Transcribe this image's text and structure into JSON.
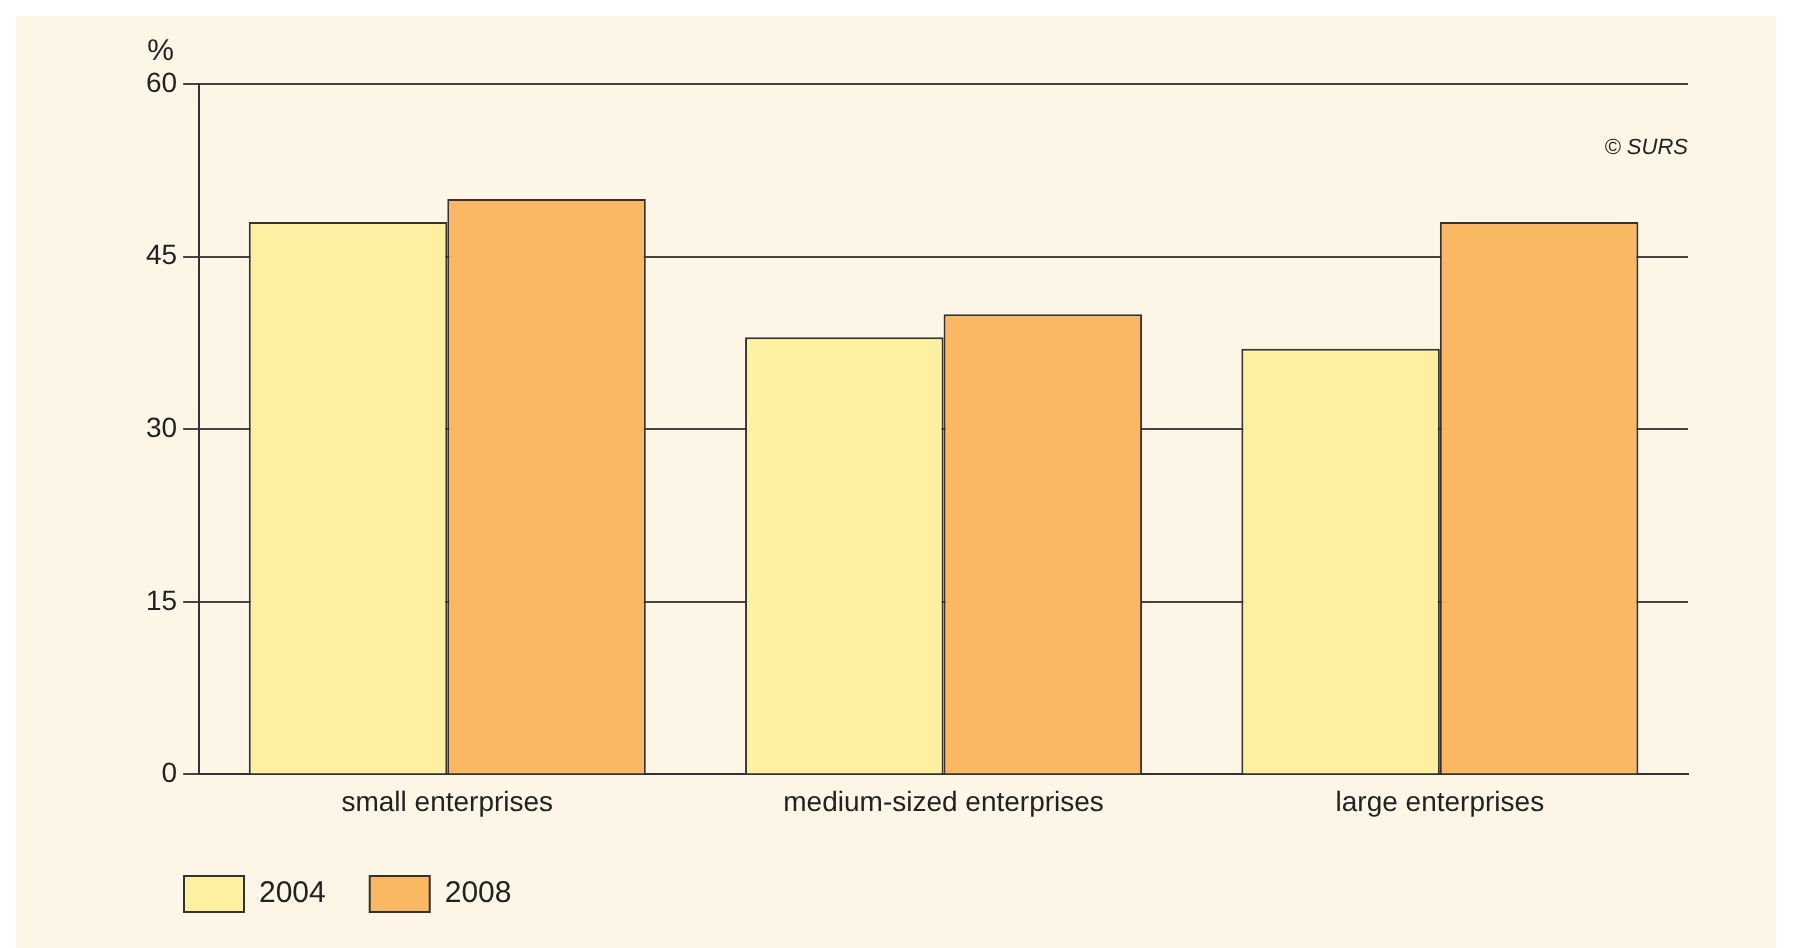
{
  "chart_data": {
    "type": "bar",
    "ylabel": "%",
    "categories": [
      "small enterprises",
      "medium-sized enterprises",
      "large enterprises"
    ],
    "series": [
      {
        "name": "2004",
        "color": "#fdf0a0",
        "values": [
          48,
          38,
          37
        ]
      },
      {
        "name": "2008",
        "color": "#fbb862",
        "values": [
          50,
          40,
          48
        ]
      }
    ],
    "ylim": [
      0,
      60
    ],
    "yticks": [
      0,
      15,
      30,
      45,
      60
    ],
    "grid": "y",
    "legend": "bottom left",
    "annotations": [
      "© SURS"
    ]
  }
}
